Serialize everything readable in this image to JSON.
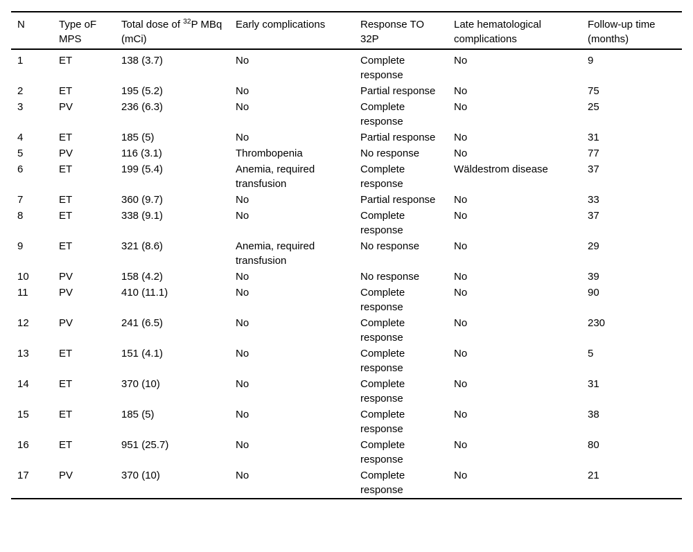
{
  "table": {
    "headers": {
      "n": "N",
      "type": "Type oF MPS",
      "dose_pre": "Total dose of ",
      "dose_sup": "32",
      "dose_post": "P MBq (mCi)",
      "early": "Early complications",
      "response": "Response TO 32P",
      "late": "Late hematological complications",
      "followup": "Follow-up time (months)"
    },
    "row_keys": [
      "n",
      "type",
      "dose",
      "early",
      "response",
      "late",
      "followup"
    ],
    "rows": [
      {
        "n": "1",
        "type": "ET",
        "dose": "138 (3.7)",
        "early": "No",
        "response": "Complete response",
        "late": "No",
        "followup": "9"
      },
      {
        "n": "2",
        "type": "ET",
        "dose": "195 (5.2)",
        "early": "No",
        "response": "Partial response",
        "late": "No",
        "followup": "75"
      },
      {
        "n": "3",
        "type": "PV",
        "dose": "236 (6.3)",
        "early": "No",
        "response": "Complete response",
        "late": "No",
        "followup": "25"
      },
      {
        "n": "4",
        "type": "ET",
        "dose": "185 (5)",
        "early": "No",
        "response": "Partial response",
        "late": "No",
        "followup": "31"
      },
      {
        "n": "5",
        "type": "PV",
        "dose": "116 (3.1)",
        "early": "Thrombopenia",
        "response": "No response",
        "late": "No",
        "followup": "77"
      },
      {
        "n": "6",
        "type": "ET",
        "dose": "199 (5.4)",
        "early": "Anemia, required transfusion",
        "response": "Complete response",
        "late": "Wäldestrom disease",
        "followup": "37"
      },
      {
        "n": "7",
        "type": "ET",
        "dose": "360 (9.7)",
        "early": "No",
        "response": "Partial response",
        "late": "No",
        "followup": "33"
      },
      {
        "n": "8",
        "type": "ET",
        "dose": "338 (9.1)",
        "early": "No",
        "response": "Complete response",
        "late": "No",
        "followup": "37"
      },
      {
        "n": "9",
        "type": "ET",
        "dose": "321 (8.6)",
        "early": "Anemia, required transfusion",
        "response": "No response",
        "late": "No",
        "followup": "29"
      },
      {
        "n": "10",
        "type": "PV",
        "dose": "158 (4.2)",
        "early": "No",
        "response": "No response",
        "late": "No",
        "followup": "39"
      },
      {
        "n": "11",
        "type": "PV",
        "dose": "410 (11.1)",
        "early": "No",
        "response": "Complete response",
        "late": "No",
        "followup": "90"
      },
      {
        "n": "12",
        "type": "PV",
        "dose": "241 (6.5)",
        "early": "No",
        "response": "Complete response",
        "late": "No",
        "followup": "230"
      },
      {
        "n": "13",
        "type": "ET",
        "dose": "151 (4.1)",
        "early": "No",
        "response": "Complete response",
        "late": "No",
        "followup": "5"
      },
      {
        "n": "14",
        "type": "ET",
        "dose": "370 (10)",
        "early": "No",
        "response": "Complete response",
        "late": "No",
        "followup": "31"
      },
      {
        "n": "15",
        "type": "ET",
        "dose": "185 (5)",
        "early": "No",
        "response": "Complete response",
        "late": "No",
        "followup": "38"
      },
      {
        "n": "16",
        "type": "ET",
        "dose": "951 (25.7)",
        "early": "No",
        "response": "Complete response",
        "late": "No",
        "followup": "80"
      },
      {
        "n": "17",
        "type": "PV",
        "dose": "370 (10)",
        "early": "No",
        "response": "Complete response",
        "late": "No",
        "followup": "21"
      }
    ],
    "colors": {
      "text": "#000000",
      "rule": "#000000",
      "background": "#ffffff"
    }
  }
}
